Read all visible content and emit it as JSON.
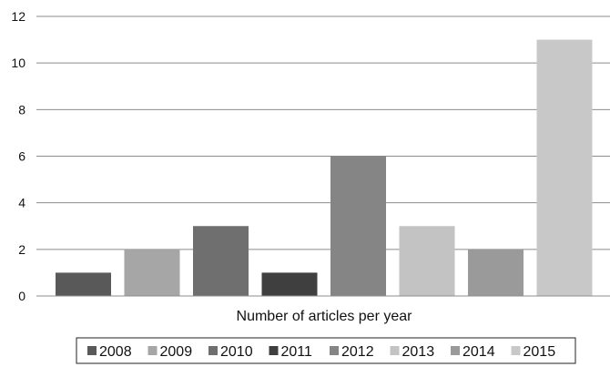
{
  "chart_data": {
    "type": "bar",
    "title": "",
    "xlabel": "Number of articles per year",
    "ylabel": "",
    "ylim": [
      0,
      12
    ],
    "yticks": [
      0,
      2,
      4,
      6,
      8,
      10,
      12
    ],
    "grid": true,
    "legend_position": "bottom",
    "series": [
      {
        "name": "2008",
        "value": 1,
        "color": "#595959"
      },
      {
        "name": "2009",
        "value": 2,
        "color": "#a6a6a6"
      },
      {
        "name": "2010",
        "value": 3,
        "color": "#6f6f6f"
      },
      {
        "name": "2011",
        "value": 1,
        "color": "#3f3f3f"
      },
      {
        "name": "2012",
        "value": 6,
        "color": "#858585"
      },
      {
        "name": "2013",
        "value": 3,
        "color": "#c3c3c3"
      },
      {
        "name": "2014",
        "value": 2,
        "color": "#9a9a9a"
      },
      {
        "name": "2015",
        "value": 11,
        "color": "#c8c8c8"
      }
    ]
  }
}
